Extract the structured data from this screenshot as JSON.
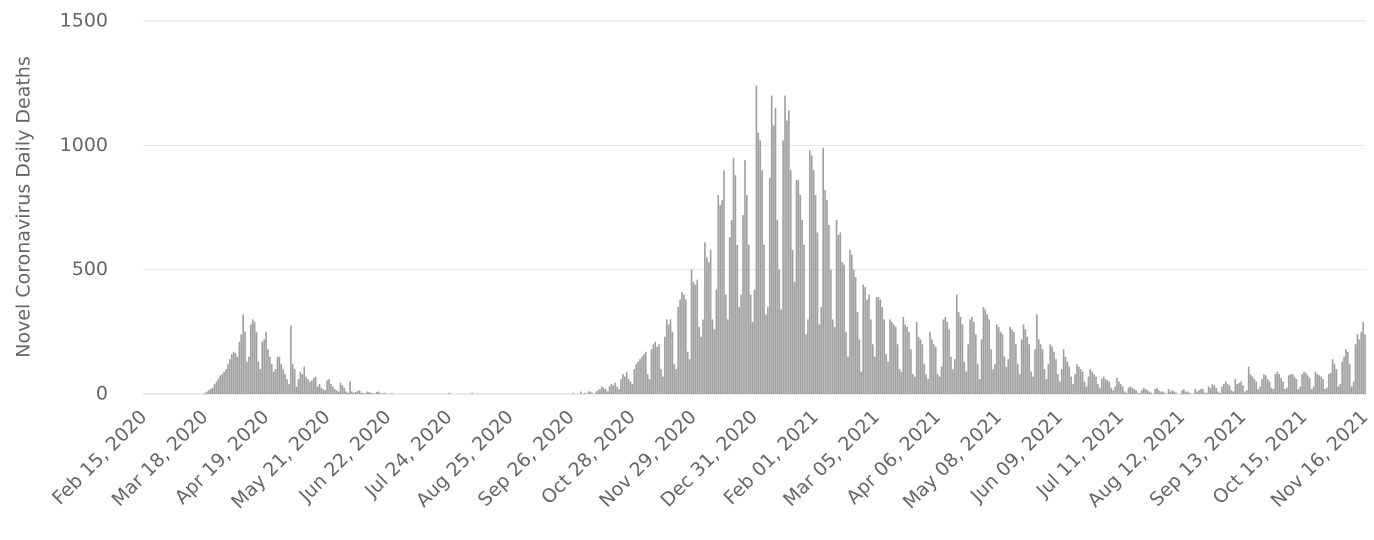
{
  "chart_data": {
    "type": "bar",
    "ylabel": "Novel Coronavirus Daily Deaths",
    "color": "#9e9e9e",
    "grid": true,
    "ylim": [
      0,
      1500
    ],
    "yticks": [
      0,
      500,
      1000,
      1500
    ],
    "categories": [
      "Feb 15, 2020",
      null,
      null,
      null,
      null,
      null,
      null,
      null,
      null,
      null,
      null,
      null,
      null,
      null,
      null,
      null,
      null,
      null,
      null,
      null,
      null,
      null,
      null,
      null,
      null,
      null,
      null,
      null,
      null,
      null,
      null,
      null,
      "Mar 18, 2020",
      null,
      null,
      null,
      null,
      null,
      null,
      null,
      null,
      null,
      null,
      null,
      null,
      null,
      null,
      null,
      null,
      null,
      null,
      null,
      null,
      null,
      null,
      null,
      null,
      null,
      null,
      null,
      null,
      null,
      null,
      null,
      "Apr 19, 2020",
      null,
      null,
      null,
      null,
      null,
      null,
      null,
      null,
      null,
      null,
      null,
      null,
      null,
      null,
      null,
      null,
      null,
      null,
      null,
      null,
      null,
      null,
      null,
      null,
      null,
      null,
      null,
      null,
      null,
      null,
      null,
      "May 21, 2020",
      null,
      null,
      null,
      null,
      null,
      null,
      null,
      null,
      null,
      null,
      null,
      null,
      null,
      null,
      null,
      null,
      null,
      null,
      null,
      null,
      null,
      null,
      null,
      null,
      null,
      null,
      null,
      null,
      null,
      null,
      null,
      "Jun 22, 2020",
      null,
      null,
      null,
      null,
      null,
      null,
      null,
      null,
      null,
      null,
      null,
      null,
      null,
      null,
      null,
      null,
      null,
      null,
      null,
      null,
      null,
      null,
      null,
      null,
      null,
      null,
      null,
      null,
      null,
      null,
      null,
      "Jul 24, 2020",
      null,
      null,
      null,
      null,
      null,
      null,
      null,
      null,
      null,
      null,
      null,
      null,
      null,
      null,
      null,
      null,
      null,
      null,
      null,
      null,
      null,
      null,
      null,
      null,
      null,
      null,
      null,
      null,
      null,
      null,
      null,
      "Aug 25, 2020",
      null,
      null,
      null,
      null,
      null,
      null,
      null,
      null,
      null,
      null,
      null,
      null,
      null,
      null,
      null,
      null,
      null,
      null,
      null,
      null,
      null,
      null,
      null,
      null,
      null,
      null,
      null,
      null,
      null,
      null,
      null,
      "Sep 26, 2020",
      null,
      null,
      null,
      null,
      null,
      null,
      null,
      null,
      null,
      null,
      null,
      null,
      null,
      null,
      null,
      null,
      null,
      null,
      null,
      null,
      null,
      null,
      null,
      null,
      null,
      null,
      null,
      null,
      null,
      null,
      null,
      "Oct 28, 2020",
      null,
      null,
      null,
      null,
      null,
      null,
      null,
      null,
      null,
      null,
      null,
      null,
      null,
      null,
      null,
      null,
      null,
      null,
      null,
      null,
      null,
      null,
      null,
      null,
      null,
      null,
      null,
      null,
      null,
      null,
      null,
      "Nov 29, 2020",
      null,
      null,
      null,
      null,
      null,
      null,
      null,
      null,
      null,
      null,
      null,
      null,
      null,
      null,
      null,
      null,
      null,
      null,
      null,
      null,
      null,
      null,
      null,
      null,
      null,
      null,
      null,
      null,
      null,
      null,
      null,
      "Dec 31, 2020",
      null,
      null,
      null,
      null,
      null,
      null,
      null,
      null,
      null,
      null,
      null,
      null,
      null,
      null,
      null,
      null,
      null,
      null,
      null,
      null,
      null,
      null,
      null,
      null,
      null,
      null,
      null,
      null,
      null,
      null,
      null,
      "Feb 01, 2021",
      null,
      null,
      null,
      null,
      null,
      null,
      null,
      null,
      null,
      null,
      null,
      null,
      null,
      null,
      null,
      null,
      null,
      null,
      null,
      null,
      null,
      null,
      null,
      null,
      null,
      null,
      null,
      null,
      null,
      null,
      null,
      "Mar 05, 2021",
      null,
      null,
      null,
      null,
      null,
      null,
      null,
      null,
      null,
      null,
      null,
      null,
      null,
      null,
      null,
      null,
      null,
      null,
      null,
      null,
      null,
      null,
      null,
      null,
      null,
      null,
      null,
      null,
      null,
      null,
      null,
      "Apr 06, 2021",
      null,
      null,
      null,
      null,
      null,
      null,
      null,
      null,
      null,
      null,
      null,
      null,
      null,
      null,
      null,
      null,
      null,
      null,
      null,
      null,
      null,
      null,
      null,
      null,
      null,
      null,
      null,
      null,
      null,
      null,
      null,
      "May 08, 2021",
      null,
      null,
      null,
      null,
      null,
      null,
      null,
      null,
      null,
      null,
      null,
      null,
      null,
      null,
      null,
      null,
      null,
      null,
      null,
      null,
      null,
      null,
      null,
      null,
      null,
      null,
      null,
      null,
      null,
      null,
      null,
      "Jun 09, 2021",
      null,
      null,
      null,
      null,
      null,
      null,
      null,
      null,
      null,
      null,
      null,
      null,
      null,
      null,
      null,
      null,
      null,
      null,
      null,
      null,
      null,
      null,
      null,
      null,
      null,
      null,
      null,
      null,
      null,
      null,
      null,
      "Jul 11, 2021",
      null,
      null,
      null,
      null,
      null,
      null,
      null,
      null,
      null,
      null,
      null,
      null,
      null,
      null,
      null,
      null,
      null,
      null,
      null,
      null,
      null,
      null,
      null,
      null,
      null,
      null,
      null,
      null,
      null,
      null,
      null,
      "Aug 12, 2021",
      null,
      null,
      null,
      null,
      null,
      null,
      null,
      null,
      null,
      null,
      null,
      null,
      null,
      null,
      null,
      null,
      null,
      null,
      null,
      null,
      null,
      null,
      null,
      null,
      null,
      null,
      null,
      null,
      null,
      null,
      null,
      "Sep 13, 2021",
      null,
      null,
      null,
      null,
      null,
      null,
      null,
      null,
      null,
      null,
      null,
      null,
      null,
      null,
      null,
      null,
      null,
      null,
      null,
      null,
      null,
      null,
      null,
      null,
      null,
      null,
      null,
      null,
      null,
      null,
      null,
      "Oct 15, 2021",
      null,
      null,
      null,
      null,
      null,
      null,
      null,
      null,
      null,
      null,
      null,
      null,
      null,
      null,
      null,
      null,
      null,
      null,
      null,
      null,
      null,
      null,
      null,
      null,
      null,
      null,
      null,
      null,
      null,
      null,
      null,
      "Nov 16, 2021"
    ],
    "values": [
      0,
      0,
      0,
      0,
      0,
      0,
      0,
      0,
      0,
      0,
      0,
      0,
      0,
      0,
      0,
      0,
      0,
      0,
      0,
      0,
      0,
      0,
      0,
      0,
      0,
      0,
      0,
      0,
      0,
      0,
      0,
      0,
      5,
      10,
      15,
      20,
      25,
      40,
      50,
      60,
      75,
      80,
      90,
      100,
      120,
      140,
      160,
      170,
      165,
      150,
      210,
      240,
      320,
      250,
      130,
      150,
      280,
      300,
      290,
      250,
      130,
      100,
      210,
      220,
      250,
      180,
      150,
      120,
      90,
      100,
      150,
      150,
      120,
      100,
      80,
      60,
      40,
      275,
      120,
      100,
      30,
      60,
      90,
      80,
      110,
      70,
      60,
      50,
      55,
      65,
      70,
      30,
      40,
      25,
      20,
      15,
      55,
      60,
      40,
      30,
      20,
      15,
      10,
      45,
      35,
      25,
      10,
      5,
      50,
      10,
      5,
      8,
      12,
      15,
      5,
      5,
      3,
      10,
      8,
      5,
      3,
      2,
      8,
      10,
      3,
      2,
      5,
      2,
      0,
      0,
      3,
      0,
      0,
      0,
      0,
      0,
      0,
      0,
      0,
      0,
      0,
      0,
      0,
      0,
      0,
      0,
      0,
      0,
      0,
      0,
      0,
      0,
      0,
      0,
      0,
      0,
      0,
      0,
      0,
      0,
      5,
      0,
      0,
      0,
      0,
      0,
      0,
      0,
      0,
      0,
      0,
      0,
      5,
      0,
      0,
      0,
      0,
      0,
      0,
      0,
      0,
      0,
      0,
      0,
      0,
      0,
      0,
      0,
      0,
      0,
      0,
      0,
      0,
      0,
      0,
      0,
      0,
      0,
      0,
      0,
      0,
      0,
      0,
      0,
      0,
      0,
      0,
      0,
      0,
      0,
      0,
      0,
      0,
      0,
      0,
      0,
      0,
      0,
      0,
      0,
      0,
      0,
      0,
      0,
      0,
      5,
      0,
      0,
      0,
      10,
      0,
      5,
      0,
      10,
      10,
      5,
      0,
      10,
      15,
      20,
      30,
      25,
      20,
      10,
      30,
      40,
      35,
      45,
      30,
      20,
      60,
      80,
      70,
      90,
      60,
      50,
      40,
      100,
      120,
      130,
      140,
      150,
      160,
      170,
      80,
      60,
      180,
      200,
      210,
      190,
      200,
      100,
      70,
      230,
      300,
      280,
      300,
      250,
      120,
      100,
      350,
      380,
      410,
      400,
      380,
      170,
      140,
      500,
      450,
      440,
      460,
      270,
      230,
      300,
      610,
      550,
      530,
      580,
      300,
      260,
      420,
      800,
      760,
      780,
      900,
      400,
      300,
      630,
      700,
      950,
      880,
      600,
      350,
      400,
      720,
      940,
      800,
      600,
      400,
      290,
      420,
      1240,
      1050,
      1020,
      900,
      600,
      320,
      350,
      870,
      1200,
      1080,
      1150,
      700,
      500,
      340,
      1020,
      1200,
      1100,
      1140,
      900,
      580,
      450,
      860,
      860,
      800,
      700,
      600,
      240,
      300,
      980,
      960,
      900,
      800,
      650,
      280,
      350,
      990,
      820,
      780,
      680,
      500,
      300,
      270,
      700,
      640,
      650,
      530,
      520,
      250,
      150,
      580,
      560,
      500,
      470,
      330,
      220,
      90,
      440,
      430,
      380,
      400,
      300,
      200,
      150,
      390,
      390,
      380,
      350,
      300,
      160,
      130,
      300,
      290,
      280,
      270,
      200,
      100,
      90,
      310,
      280,
      270,
      250,
      180,
      80,
      70,
      290,
      230,
      220,
      200,
      120,
      80,
      60,
      250,
      220,
      200,
      190,
      80,
      70,
      110,
      300,
      310,
      290,
      260,
      150,
      100,
      140,
      400,
      330,
      310,
      280,
      130,
      90,
      200,
      300,
      310,
      290,
      240,
      120,
      60,
      220,
      350,
      340,
      320,
      300,
      180,
      100,
      120,
      280,
      270,
      250,
      240,
      150,
      110,
      140,
      270,
      260,
      250,
      200,
      120,
      80,
      220,
      280,
      260,
      230,
      200,
      90,
      70,
      180,
      320,
      220,
      200,
      180,
      100,
      60,
      120,
      200,
      190,
      170,
      140,
      80,
      50,
      100,
      180,
      150,
      130,
      110,
      70,
      40,
      80,
      120,
      110,
      100,
      90,
      50,
      30,
      70,
      100,
      90,
      80,
      70,
      40,
      25,
      60,
      70,
      60,
      55,
      50,
      25,
      15,
      30,
      65,
      50,
      40,
      30,
      10,
      5,
      25,
      30,
      25,
      20,
      15,
      5,
      5,
      15,
      25,
      20,
      15,
      10,
      5,
      0,
      20,
      25,
      15,
      10,
      10,
      5,
      0,
      20,
      10,
      15,
      10,
      5,
      0,
      0,
      15,
      20,
      10,
      10,
      5,
      0,
      0,
      20,
      10,
      15,
      20,
      20,
      5,
      5,
      30,
      25,
      40,
      35,
      25,
      10,
      5,
      30,
      40,
      50,
      40,
      35,
      15,
      10,
      60,
      40,
      45,
      50,
      35,
      10,
      15,
      110,
      80,
      70,
      60,
      50,
      20,
      30,
      60,
      80,
      75,
      60,
      50,
      25,
      20,
      80,
      90,
      80,
      65,
      50,
      20,
      25,
      75,
      80,
      80,
      70,
      60,
      20,
      30,
      80,
      90,
      85,
      75,
      65,
      20,
      30,
      90,
      80,
      75,
      70,
      60,
      20,
      25,
      80,
      85,
      140,
      120,
      100,
      30,
      40,
      130,
      150,
      180,
      170,
      120,
      30,
      50,
      200,
      240,
      220,
      250,
      290,
      240
    ]
  }
}
